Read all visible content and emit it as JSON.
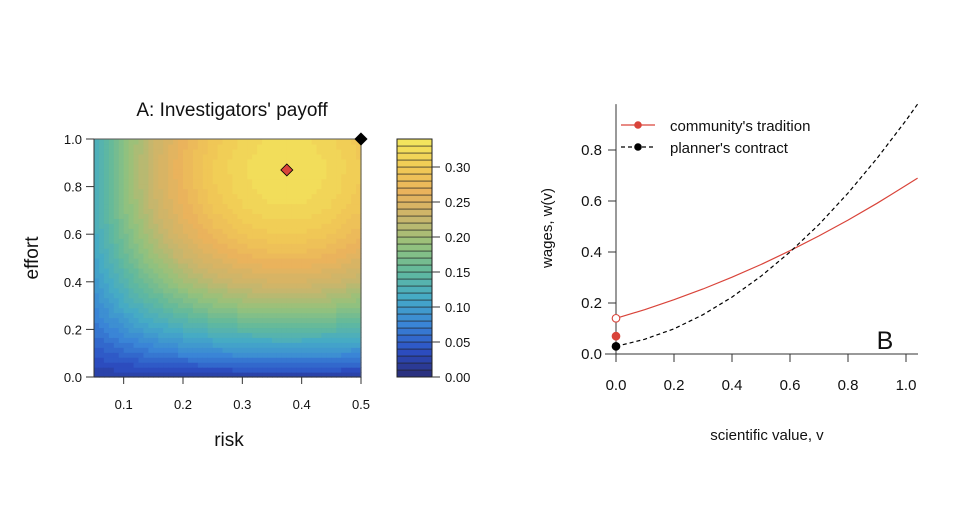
{
  "chart_data": [
    {
      "type": "heatmap",
      "title": "A: Investigators' payoff",
      "xlabel": "risk",
      "ylabel": "effort",
      "xlim": [
        0.05,
        0.5
      ],
      "ylim": [
        0,
        1
      ],
      "x_ticks": [
        "0.1",
        "0.2",
        "0.3",
        "0.4",
        "0.5"
      ],
      "y_ticks": [
        "0.0",
        "0.2",
        "0.4",
        "0.6",
        "0.8",
        "1.0"
      ],
      "colorbar": {
        "range": [
          0,
          0.34
        ],
        "step": 0.01,
        "ticks": [
          "0.00",
          "0.05",
          "0.10",
          "0.15",
          "0.20",
          "0.25",
          "0.30"
        ],
        "palette": [
          "#2a2c76",
          "#2c4fc4",
          "#3a86d6",
          "#45aac6",
          "#62b99c",
          "#95c27c",
          "#c8b56c",
          "#eab35c",
          "#f1cc55",
          "#f2e85e"
        ]
      },
      "grid_x": [
        0.05,
        0.1,
        0.15,
        0.2,
        0.25,
        0.3,
        0.35,
        0.4,
        0.45,
        0.5
      ],
      "grid_y": [
        0,
        0.1,
        0.2,
        0.3,
        0.4,
        0.5,
        0.6,
        0.7,
        0.8,
        0.9,
        1.0
      ],
      "z": [
        [
          0.02,
          0.02,
          0.02,
          0.02,
          0.02,
          0.02,
          0.02,
          0.02,
          0.02,
          0.02
        ],
        [
          0.043,
          0.055,
          0.066,
          0.074,
          0.081,
          0.085,
          0.087,
          0.087,
          0.085,
          0.081
        ],
        [
          0.063,
          0.086,
          0.106,
          0.122,
          0.134,
          0.142,
          0.146,
          0.146,
          0.142,
          0.134
        ],
        [
          0.08,
          0.113,
          0.141,
          0.163,
          0.18,
          0.191,
          0.196,
          0.196,
          0.191,
          0.18
        ],
        [
          0.094,
          0.135,
          0.17,
          0.198,
          0.218,
          0.232,
          0.239,
          0.239,
          0.232,
          0.218
        ],
        [
          0.106,
          0.153,
          0.194,
          0.226,
          0.249,
          0.265,
          0.273,
          0.273,
          0.265,
          0.249
        ],
        [
          0.115,
          0.167,
          0.212,
          0.247,
          0.273,
          0.29,
          0.299,
          0.299,
          0.29,
          0.273
        ],
        [
          0.121,
          0.177,
          0.224,
          0.261,
          0.289,
          0.308,
          0.317,
          0.317,
          0.308,
          0.289
        ],
        [
          0.124,
          0.182,
          0.231,
          0.269,
          0.298,
          0.317,
          0.327,
          0.327,
          0.317,
          0.298
        ],
        [
          0.125,
          0.183,
          0.232,
          0.271,
          0.3,
          0.319,
          0.329,
          0.329,
          0.319,
          0.3
        ],
        [
          0.123,
          0.179,
          0.227,
          0.265,
          0.294,
          0.312,
          0.322,
          0.322,
          0.312,
          0.294
        ]
      ],
      "markers": [
        {
          "name": "optimum",
          "risk": 0.375,
          "effort": 0.87,
          "color": "#d9443a",
          "shape": "diamond"
        },
        {
          "name": "corner",
          "risk": 0.5,
          "effort": 1.0,
          "color": "#000000",
          "shape": "diamond"
        }
      ]
    },
    {
      "type": "line",
      "panel_label": "B",
      "xlabel": "scientific value, v",
      "ylabel": "wages, w(v)",
      "xlim": [
        0,
        1.04
      ],
      "ylim": [
        0,
        0.98
      ],
      "x_ticks": [
        "0.0",
        "0.2",
        "0.4",
        "0.6",
        "0.8",
        "1.0"
      ],
      "y_ticks": [
        "0.0",
        "0.2",
        "0.4",
        "0.6",
        "0.8"
      ],
      "legend_position": "top-left",
      "series": [
        {
          "name": "community's tradition",
          "color": "#d9443a",
          "dash": "solid",
          "x": [
            0,
            0.1,
            0.2,
            0.3,
            0.4,
            0.5,
            0.6,
            0.7,
            0.8,
            0.9,
            1.0,
            1.04
          ],
          "y": [
            0.14,
            0.174,
            0.213,
            0.255,
            0.301,
            0.351,
            0.405,
            0.463,
            0.525,
            0.591,
            0.661,
            0.69
          ],
          "points": [
            {
              "x": 0,
              "y": 0.14,
              "filled": false
            },
            {
              "x": 0,
              "y": 0.07,
              "filled": true
            }
          ]
        },
        {
          "name": "planner's contract",
          "color": "#000000",
          "dash": "dashed",
          "x": [
            0,
            0.1,
            0.2,
            0.3,
            0.4,
            0.5,
            0.6,
            0.7,
            0.8,
            0.9,
            1.0,
            1.04
          ],
          "y": [
            0.03,
            0.058,
            0.099,
            0.154,
            0.223,
            0.305,
            0.4,
            0.508,
            0.631,
            0.767,
            0.916,
            0.98
          ],
          "points": [
            {
              "x": 0,
              "y": 0.03,
              "filled": true
            }
          ]
        }
      ]
    }
  ]
}
